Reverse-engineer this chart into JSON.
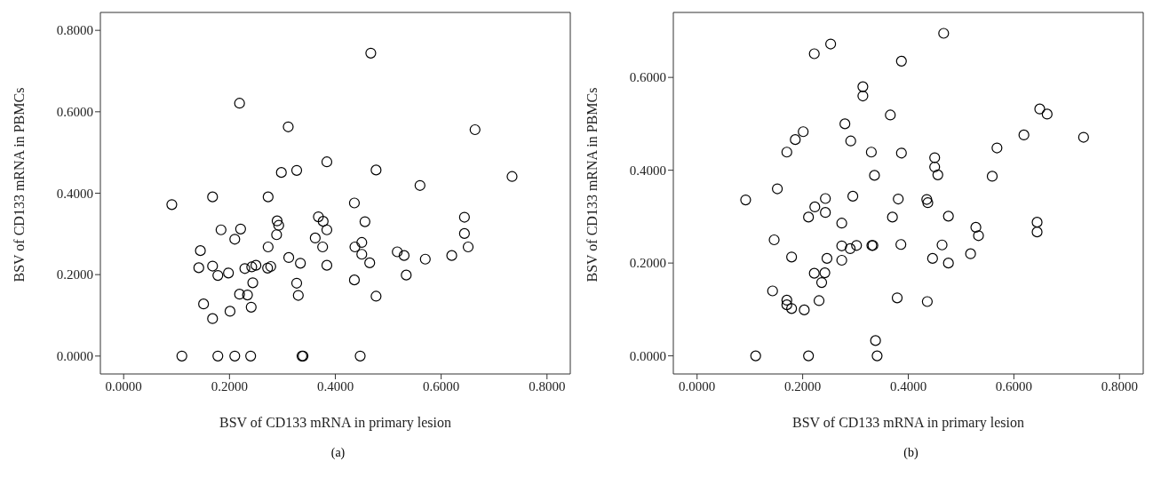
{
  "chart_data": [
    {
      "type": "scatter",
      "xlabel": "BSV of CD133 mRNA in primary lesion",
      "ylabel": "BSV of CD133 mRNA in PBMCs",
      "annotations": [
        "(a)"
      ],
      "color": "#000000",
      "marker": "circle",
      "grid": false,
      "xlim": [
        -0.044,
        0.844
      ],
      "ylim": [
        -0.044,
        0.844
      ],
      "xticks": [
        {
          "value": 0,
          "label": "0.0000"
        },
        {
          "value": 0.2,
          "label": "0.2000"
        },
        {
          "value": 0.4,
          "label": "0.4000"
        },
        {
          "value": 0.6,
          "label": "0.6000"
        },
        {
          "value": 0.8,
          "label": "0.8000"
        }
      ],
      "yticks": [
        {
          "value": 0,
          "label": "0.0000"
        },
        {
          "value": 0.2,
          "label": "0.2000"
        },
        {
          "value": 0.4,
          "label": "0.4000"
        },
        {
          "value": 0.6,
          "label": "0.6000"
        },
        {
          "value": 0.8,
          "label": "0.8000"
        }
      ],
      "x": [
        0.091,
        0.11,
        0.219,
        0.311,
        0.384,
        0.298,
        0.327,
        0.168,
        0.273,
        0.368,
        0.377,
        0.29,
        0.293,
        0.384,
        0.184,
        0.221,
        0.21,
        0.289,
        0.362,
        0.273,
        0.376,
        0.145,
        0.312,
        0.334,
        0.384,
        0.142,
        0.168,
        0.178,
        0.198,
        0.229,
        0.242,
        0.25,
        0.272,
        0.278,
        0.244,
        0.327,
        0.219,
        0.234,
        0.33,
        0.151,
        0.241,
        0.201,
        0.168,
        0.178,
        0.21,
        0.24,
        0.337,
        0.339,
        0.467,
        0.664,
        0.477,
        0.734,
        0.56,
        0.436,
        0.644,
        0.456,
        0.644,
        0.45,
        0.437,
        0.651,
        0.45,
        0.517,
        0.53,
        0.57,
        0.62,
        0.465,
        0.436,
        0.534,
        0.477,
        0.447
      ],
      "values": [
        0.372,
        0,
        0.621,
        0.563,
        0.477,
        0.451,
        0.456,
        0.391,
        0.391,
        0.342,
        0.331,
        0.332,
        0.321,
        0.31,
        0.31,
        0.312,
        0.287,
        0.298,
        0.29,
        0.268,
        0.268,
        0.259,
        0.242,
        0.228,
        0.223,
        0.217,
        0.221,
        0.198,
        0.204,
        0.215,
        0.219,
        0.223,
        0.216,
        0.22,
        0.18,
        0.179,
        0.152,
        0.15,
        0.149,
        0.128,
        0.12,
        0.11,
        0.092,
        0,
        0,
        0,
        0,
        0,
        0.744,
        0.556,
        0.457,
        0.441,
        0.419,
        0.376,
        0.341,
        0.33,
        0.301,
        0.279,
        0.268,
        0.268,
        0.25,
        0.256,
        0.247,
        0.238,
        0.247,
        0.229,
        0.187,
        0.199,
        0.147,
        0
      ]
    },
    {
      "type": "scatter",
      "xlabel": "BSV of CD133 mRNA in primary lesion",
      "ylabel": "BSV of CD133 mRNA in PBMCs",
      "annotations": [
        "(b)"
      ],
      "color": "#000000",
      "marker": "circle",
      "grid": false,
      "xlim": [
        -0.045,
        0.845
      ],
      "ylim": [
        -0.039,
        0.74
      ],
      "xticks": [
        {
          "value": 0,
          "label": "0.0000"
        },
        {
          "value": 0.2,
          "label": "0.2000"
        },
        {
          "value": 0.4,
          "label": "0.4000"
        },
        {
          "value": 0.6,
          "label": "0.6000"
        },
        {
          "value": 0.8,
          "label": "0.8000"
        }
      ],
      "yticks": [
        {
          "value": 0,
          "label": "0.0000"
        },
        {
          "value": 0.2,
          "label": "0.2000"
        },
        {
          "value": 0.4,
          "label": "0.4000"
        },
        {
          "value": 0.6,
          "label": "0.6000"
        }
      ],
      "x": [
        0.253,
        0.222,
        0.387,
        0.314,
        0.314,
        0.366,
        0.28,
        0.201,
        0.186,
        0.291,
        0.17,
        0.33,
        0.387,
        0.336,
        0.152,
        0.092,
        0.243,
        0.295,
        0.381,
        0.223,
        0.243,
        0.211,
        0.37,
        0.274,
        0.146,
        0.274,
        0.29,
        0.302,
        0.331,
        0.333,
        0.386,
        0.179,
        0.246,
        0.274,
        0.222,
        0.242,
        0.236,
        0.143,
        0.17,
        0.17,
        0.179,
        0.203,
        0.231,
        0.379,
        0.338,
        0.111,
        0.211,
        0.341,
        0.467,
        0.649,
        0.663,
        0.619,
        0.732,
        0.568,
        0.45,
        0.45,
        0.456,
        0.559,
        0.435,
        0.437,
        0.476,
        0.528,
        0.533,
        0.644,
        0.644,
        0.464,
        0.446,
        0.476,
        0.518,
        0.436
      ],
      "values": [
        0.672,
        0.651,
        0.635,
        0.58,
        0.56,
        0.519,
        0.5,
        0.483,
        0.466,
        0.463,
        0.439,
        0.439,
        0.437,
        0.389,
        0.36,
        0.336,
        0.339,
        0.344,
        0.338,
        0.321,
        0.309,
        0.299,
        0.299,
        0.286,
        0.25,
        0.237,
        0.231,
        0.238,
        0.238,
        0.238,
        0.24,
        0.213,
        0.21,
        0.206,
        0.178,
        0.179,
        0.158,
        0.14,
        0.12,
        0.11,
        0.102,
        0.099,
        0.119,
        0.125,
        0.033,
        0,
        0,
        0,
        0.695,
        0.532,
        0.521,
        0.476,
        0.471,
        0.448,
        0.427,
        0.407,
        0.39,
        0.387,
        0.337,
        0.33,
        0.301,
        0.277,
        0.259,
        0.288,
        0.267,
        0.239,
        0.21,
        0.2,
        0.22,
        0.117
      ]
    }
  ]
}
